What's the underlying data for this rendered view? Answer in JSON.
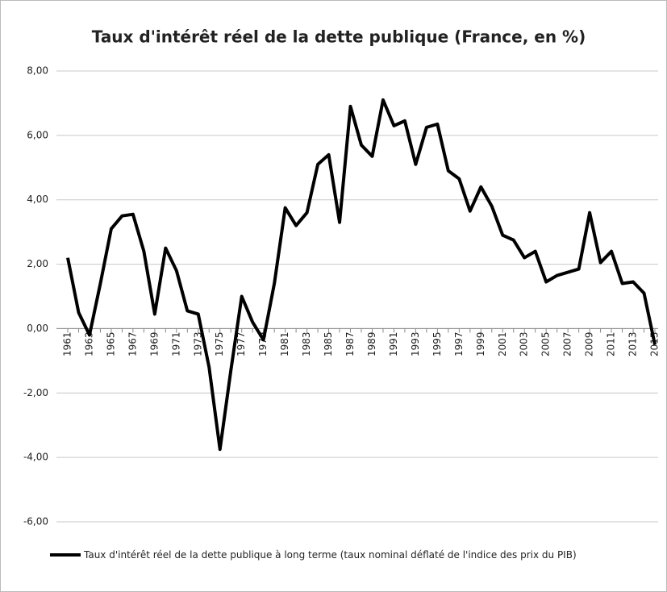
{
  "chart_data": {
    "type": "line",
    "title": "Taux d'intérêt réel de la dette publique (France, en %)",
    "categories": [
      "1961",
      null,
      "1963",
      null,
      "1965",
      null,
      "1967",
      null,
      "1969",
      null,
      "1971",
      null,
      "1973",
      null,
      "1975",
      null,
      "1977",
      null,
      "1979",
      null,
      "1981",
      null,
      "1983",
      null,
      "1985",
      null,
      "1987",
      null,
      "1989",
      null,
      "1991",
      null,
      "1993",
      null,
      "1995",
      null,
      "1997",
      null,
      "1999",
      null,
      "2001",
      null,
      "2003",
      null,
      "2005",
      null,
      "2007",
      null,
      "2009",
      null,
      "2011",
      null,
      "2013",
      null,
      "2015"
    ],
    "series": [
      {
        "name": "Taux d'intérêt réel de la dette publique à long terme (taux nominal déflaté de l'indice des prix du PIB)",
        "color": "#000000",
        "values": [
          2.2,
          0.5,
          -0.2,
          1.4,
          3.1,
          3.5,
          3.55,
          2.4,
          0.45,
          2.5,
          1.8,
          0.55,
          0.45,
          -1.2,
          -3.75,
          -1.3,
          1.0,
          0.2,
          -0.35,
          1.4,
          3.75,
          3.2,
          3.6,
          5.1,
          5.4,
          3.3,
          6.9,
          5.7,
          5.35,
          7.1,
          6.3,
          6.45,
          5.1,
          6.25,
          6.35,
          4.9,
          4.65,
          3.65,
          4.4,
          3.8,
          2.9,
          2.75,
          2.2,
          2.4,
          1.45,
          1.65,
          1.75,
          1.85,
          3.6,
          2.05,
          2.4,
          1.4,
          1.45,
          1.1,
          -0.5
        ]
      }
    ],
    "ylim": [
      -6,
      8
    ],
    "yticks": [
      {
        "value": -6,
        "label": "-6,00"
      },
      {
        "value": -4,
        "label": "-4,00"
      },
      {
        "value": -2,
        "label": "-2,00"
      },
      {
        "value": 0,
        "label": "0,00"
      },
      {
        "value": 2,
        "label": "2,00"
      },
      {
        "value": 4,
        "label": "4,00"
      },
      {
        "value": 6,
        "label": "6,00"
      },
      {
        "value": 8,
        "label": "8,00"
      }
    ],
    "grid": true,
    "legend": "bottom"
  }
}
